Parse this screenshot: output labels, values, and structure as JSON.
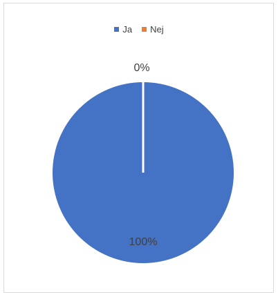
{
  "chart_data": {
    "type": "pie",
    "categories": [
      "Ja",
      "Nej"
    ],
    "values": [
      100,
      0
    ],
    "data_labels": [
      "100%",
      "0%"
    ],
    "colors": [
      "#4472c4",
      "#ed7d31"
    ],
    "legend": {
      "position": "top",
      "entries": [
        "Ja",
        "Nej"
      ]
    }
  }
}
